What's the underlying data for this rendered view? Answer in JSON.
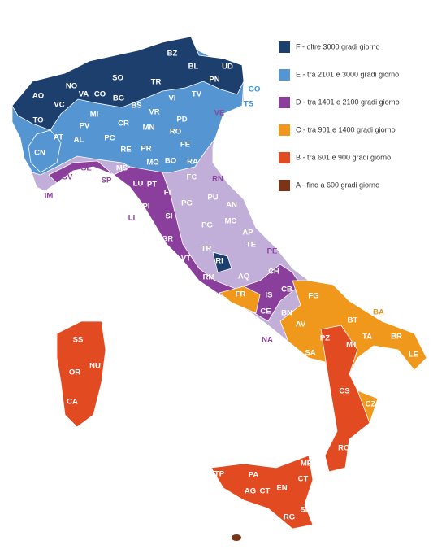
{
  "legend": {
    "items": [
      {
        "label": "F - oltre 3000 gradi giorno",
        "color": "#1d3f6e"
      },
      {
        "label": "E - tra 2101 e 3000 gradi giorno",
        "color": "#5596d2"
      },
      {
        "label": "D - tra 1401 e 2100 gradi giorno",
        "color": "#8b3f9d"
      },
      {
        "label": "C - tra 901 e 1400 gradi giorno",
        "color": "#f0981c"
      },
      {
        "label": "B - tra 601 e 900 gradi giorno",
        "color": "#e24a22"
      },
      {
        "label": "A - fino a 600 gradi giorno",
        "color": "#7a3418"
      }
    ]
  },
  "provinces": [
    "BZ",
    "BL",
    "UD",
    "SO",
    "TR",
    "PN",
    "GO",
    "TS",
    "NO",
    "VA",
    "CO",
    "BG",
    "VI",
    "TV",
    "AO",
    "VC",
    "BS",
    "PD",
    "VE",
    "MI",
    "TO",
    "PV",
    "CR",
    "MN",
    "VR",
    "RO",
    "AT",
    "AL",
    "PC",
    "FE",
    "PR",
    "RE",
    "CN",
    "BO",
    "MO",
    "RA",
    "FC",
    "RN",
    "SV",
    "GE",
    "IM",
    "SP",
    "MS",
    "LU",
    "PT",
    "FI",
    "PU",
    "AN",
    "PI",
    "PG",
    "PG",
    "LI",
    "SI",
    "MC",
    "AP",
    "GR",
    "TE",
    "PE",
    "TR",
    "VT",
    "RI",
    "AQ",
    "CH",
    "RM",
    "IS",
    "CB",
    "FR",
    "LT",
    "FG",
    "CE",
    "BN",
    "BA",
    "BT",
    "AV",
    "NA",
    "PZ",
    "TA",
    "BR",
    "MT",
    "SA",
    "LE",
    "CS",
    "CZ",
    "RC",
    "SS",
    "NU",
    "OR",
    "CA",
    "TP",
    "PA",
    "ME",
    "CT",
    "AG",
    "CT",
    "EN",
    "RG",
    "SR"
  ]
}
